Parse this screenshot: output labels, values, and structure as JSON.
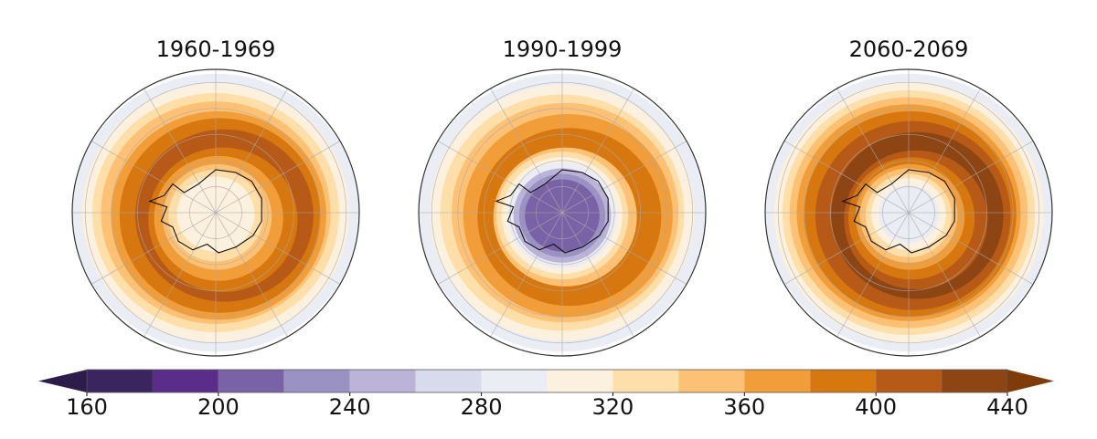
{
  "panels": [
    {
      "title": "1960-1969"
    },
    {
      "title": "1990-1999"
    },
    {
      "title": "2060-2069"
    }
  ],
  "colorbar": {
    "levels": [
      160,
      180,
      200,
      220,
      240,
      260,
      280,
      300,
      320,
      340,
      360,
      380,
      400,
      420,
      440
    ],
    "tick_labels": [
      "160",
      "200",
      "240",
      "280",
      "320",
      "360",
      "400",
      "440"
    ],
    "colors": [
      "#3a2560",
      "#5b2d8a",
      "#7a62a6",
      "#9b92c4",
      "#bbb3d8",
      "#d7dbeb",
      "#ebedf5",
      "#fcf0df",
      "#fedea9",
      "#fdc175",
      "#f19e3a",
      "#d6770f",
      "#b75a17",
      "#8d4514"
    ],
    "extend_low_color": "#2d1b4a",
    "extend_high_color": "#7f3b08",
    "extend": "both"
  }
}
